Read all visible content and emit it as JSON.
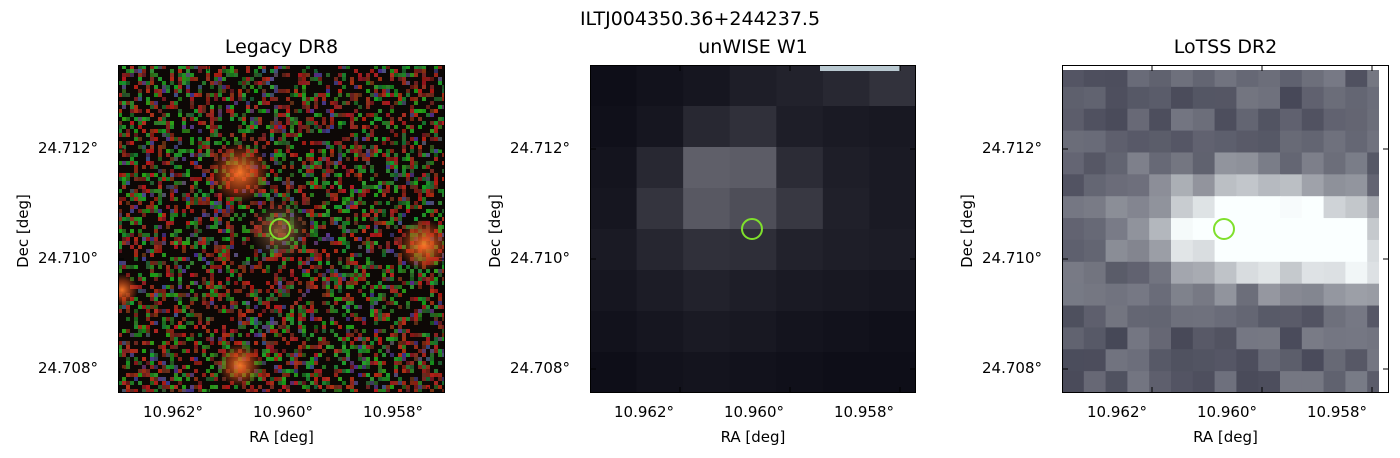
{
  "title": "ILTJ004350.36+244237.5",
  "panels": [
    {
      "title": "Legacy DR8",
      "xlabel": "RA [deg]",
      "ylabel": "Dec [deg]",
      "xticks": [
        "10.962°",
        "10.960°",
        "10.958°"
      ],
      "yticks": [
        "24.712°",
        "24.710°",
        "24.708°"
      ],
      "marker_color": "#7fe02c"
    },
    {
      "title": "unWISE W1",
      "xlabel": "RA [deg]",
      "ylabel": "Dec [deg]",
      "xticks": [
        "10.962°",
        "10.960°",
        "10.958°"
      ],
      "yticks": [
        "24.712°",
        "24.710°",
        "24.708°"
      ],
      "marker_color": "#7fe02c"
    },
    {
      "title": "LoTSS DR2",
      "xlabel": "RA [deg]",
      "ylabel": "Dec [deg]",
      "xticks": [
        "10.962°",
        "10.960°",
        "10.958°"
      ],
      "yticks": [
        "24.712°",
        "24.710°",
        "24.708°"
      ],
      "marker_color": "#7fe02c"
    }
  ]
}
